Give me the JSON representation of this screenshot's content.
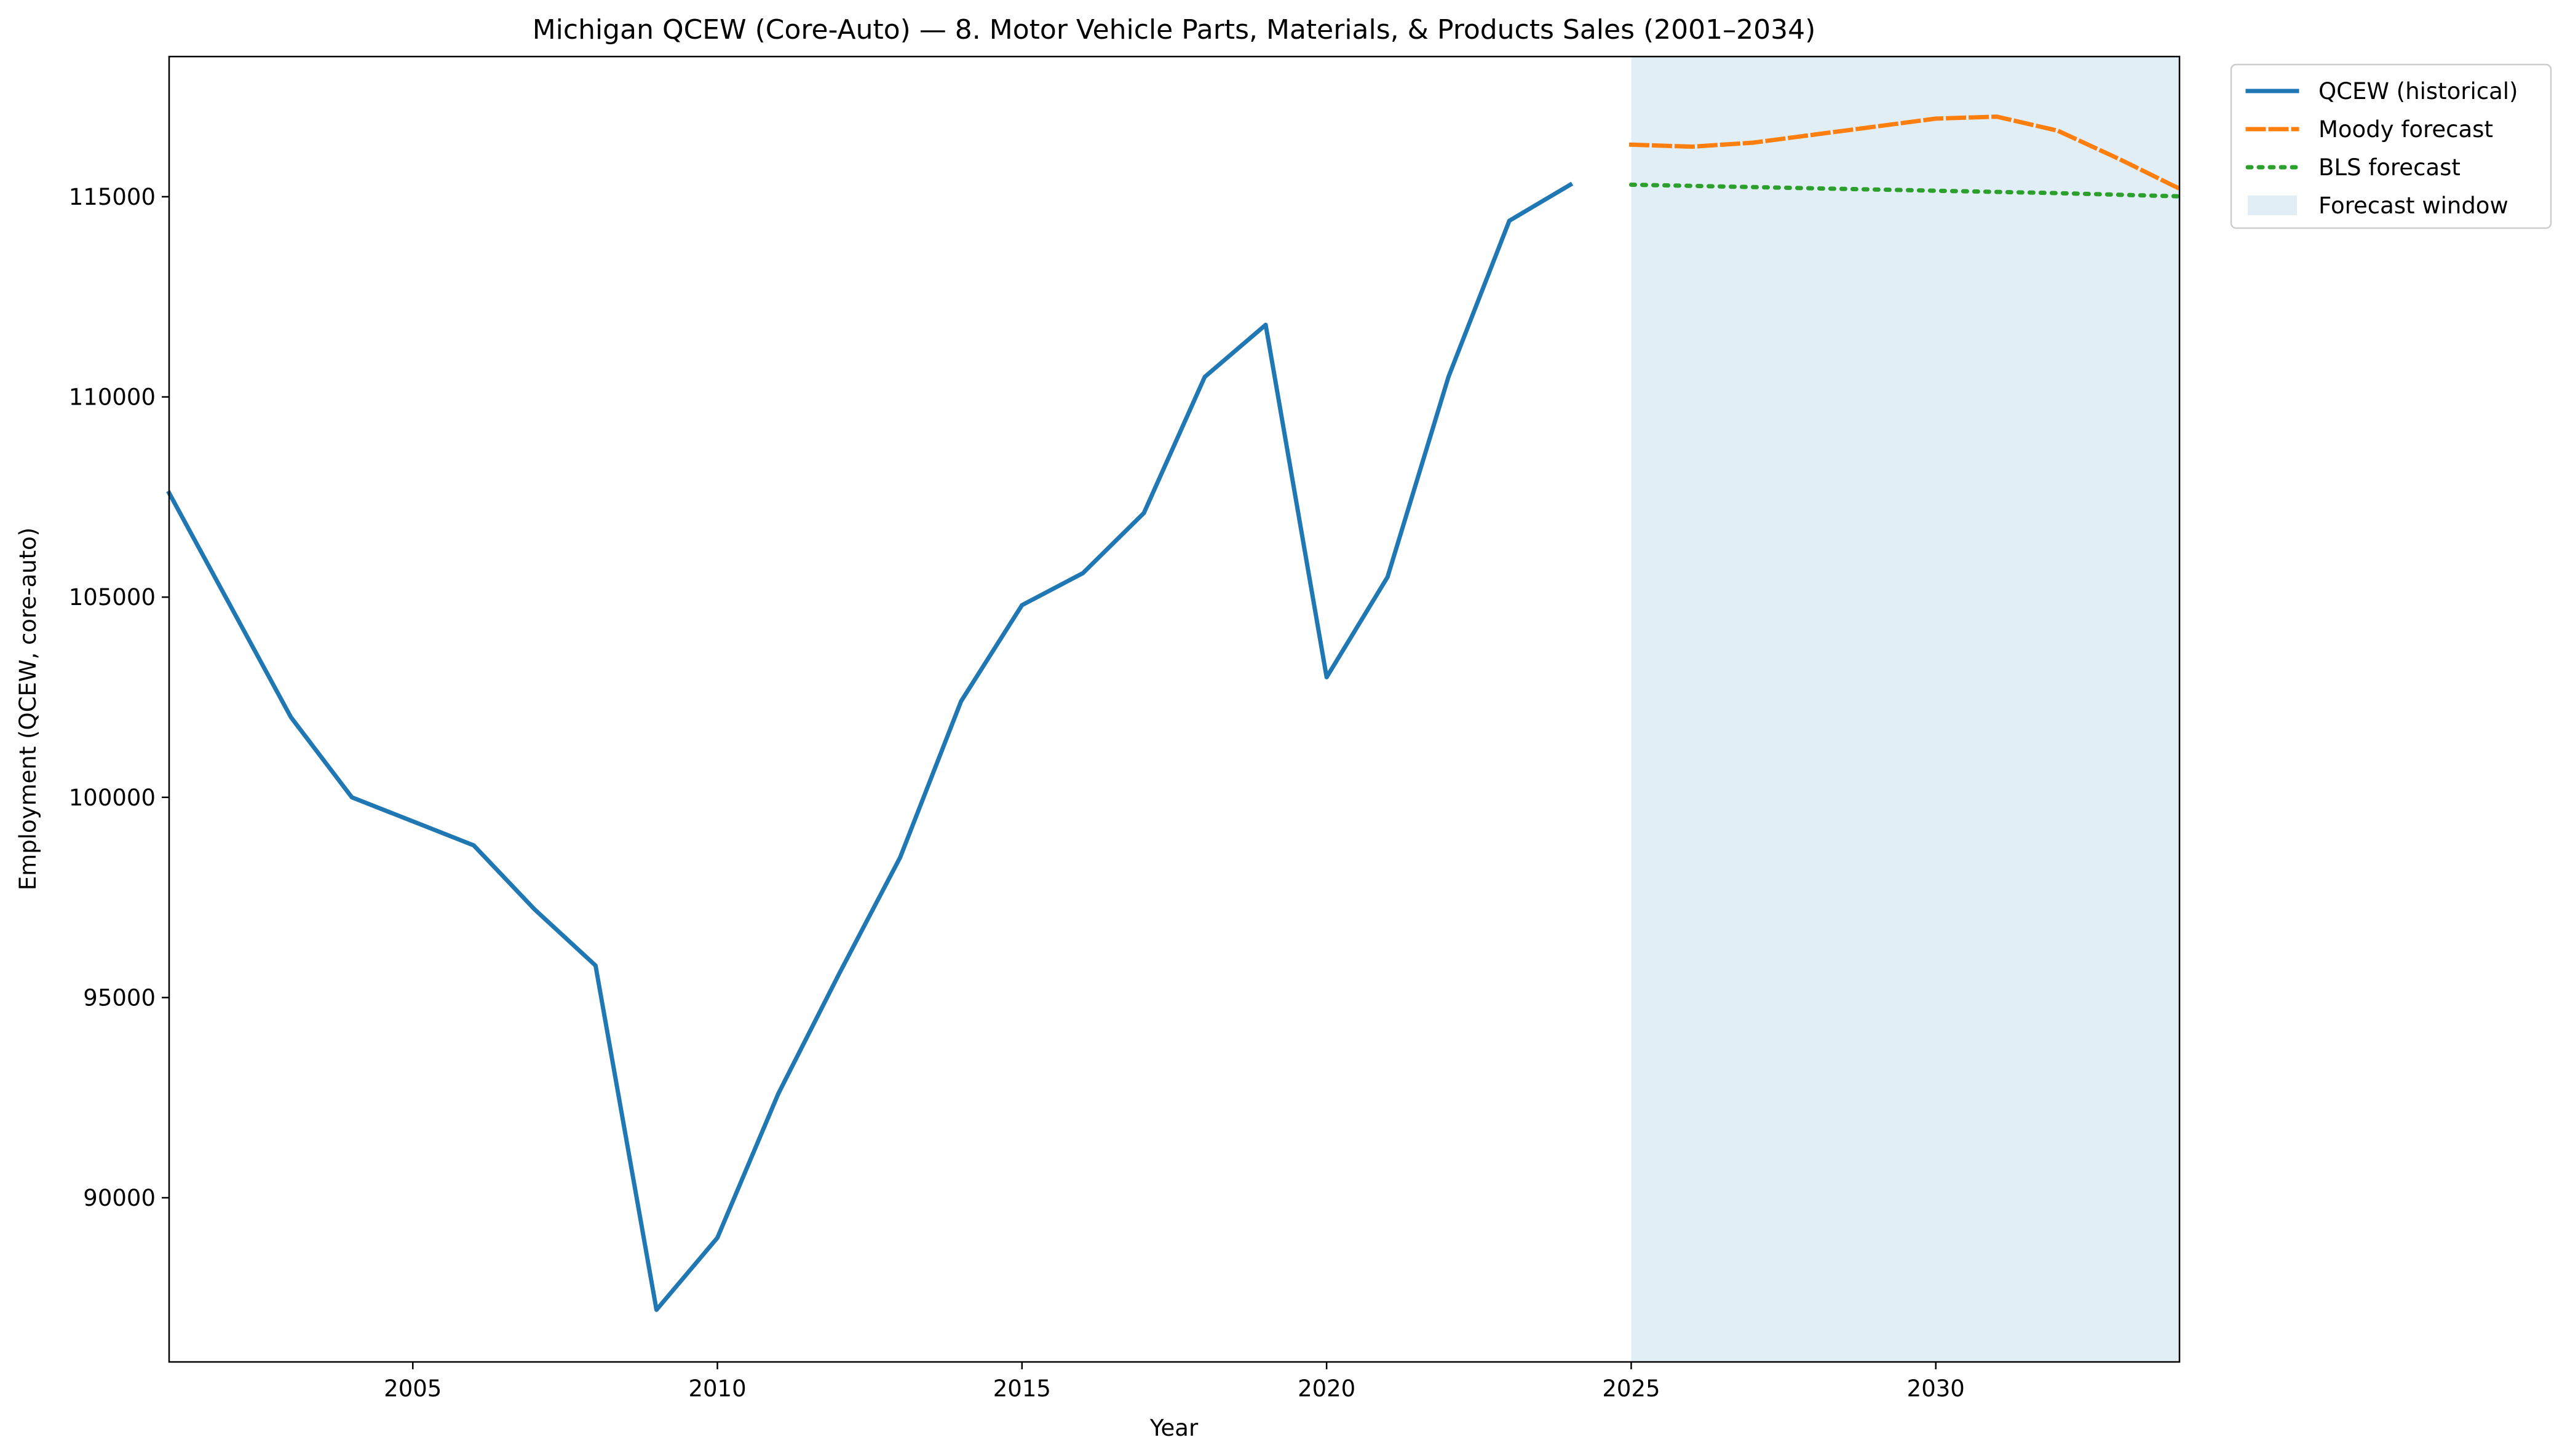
{
  "chart_data": {
    "type": "line",
    "title": "Michigan QCEW (Core-Auto) — 8. Motor Vehicle Parts, Materials, & Products Sales (2001–2034)",
    "xlabel": "Year",
    "ylabel": "Employment (QCEW, core-auto)",
    "xlim": [
      2001,
      2034
    ],
    "ylim": [
      85900,
      118500
    ],
    "x_ticks": [
      2005,
      2010,
      2015,
      2020,
      2025,
      2030
    ],
    "y_ticks": [
      90000,
      95000,
      100000,
      105000,
      110000,
      115000
    ],
    "grid": false,
    "legend_position": "outside top-right",
    "forecast_window": {
      "label": "Forecast window",
      "start": 2025,
      "end": 2034,
      "color": "#e2eef5"
    },
    "series": [
      {
        "name": "QCEW (historical)",
        "style": "solid",
        "color": "#1f77b4",
        "x": [
          2001,
          2002,
          2003,
          2004,
          2005,
          2006,
          2007,
          2008,
          2009,
          2010,
          2011,
          2012,
          2013,
          2014,
          2015,
          2016,
          2017,
          2018,
          2019,
          2020,
          2021,
          2022,
          2023,
          2024
        ],
        "values": [
          107600,
          104800,
          102000,
          100000,
          99400,
          98800,
          97200,
          95800,
          87200,
          89000,
          92600,
          95600,
          98500,
          102400,
          104800,
          105600,
          107100,
          110500,
          111800,
          103000,
          105500,
          110500,
          114400,
          115300
        ]
      },
      {
        "name": "Moody forecast",
        "style": "dashed",
        "color": "#ff7f0e",
        "x": [
          2025,
          2026,
          2027,
          2028,
          2029,
          2030,
          2031,
          2032,
          2033,
          2034
        ],
        "values": [
          116300,
          116250,
          116350,
          116550,
          116750,
          116950,
          117000,
          116650,
          115950,
          115200
        ]
      },
      {
        "name": "BLS forecast",
        "style": "dotted",
        "color": "#2ca02c",
        "x": [
          2025,
          2026,
          2027,
          2028,
          2029,
          2030,
          2031,
          2032,
          2033,
          2034
        ],
        "values": [
          115300,
          115270,
          115240,
          115210,
          115180,
          115150,
          115120,
          115090,
          115050,
          115010
        ]
      }
    ]
  }
}
